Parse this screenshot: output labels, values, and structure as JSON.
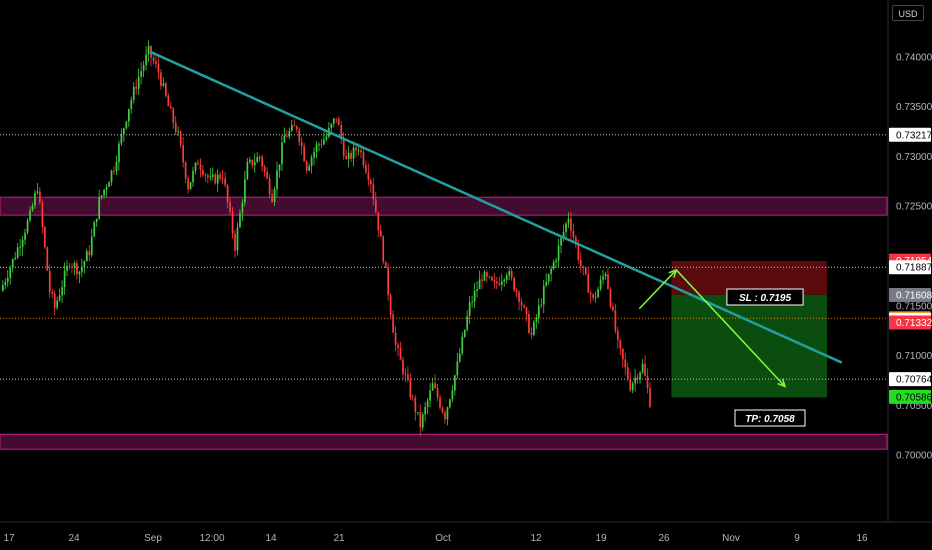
{
  "ui": {
    "currency": "USD"
  },
  "chart_data": {
    "type": "candlestick",
    "y_axis_ticks": [
      "0.74000",
      "0.73500",
      "0.73000",
      "0.72500",
      "0.71500",
      "0.71000",
      "0.70500",
      "0.70000"
    ],
    "x_axis_ticks": [
      "17",
      "24",
      "Sep",
      "12:00",
      "14",
      "21",
      "Oct",
      "12",
      "19",
      "26",
      "Nov",
      "9",
      "16"
    ],
    "ylim": [
      0.6955,
      0.7449
    ],
    "price_tags": [
      {
        "label": "0.73217",
        "value": 0.73217,
        "bg": "#ffffff",
        "fg": "#000000",
        "line": "dotted"
      },
      {
        "label": "0.71954",
        "value": 0.71954,
        "bg": "#f23645",
        "fg": "#ffffff",
        "line": "none"
      },
      {
        "label": "0.71887",
        "value": 0.71887,
        "bg": "#ffffff",
        "fg": "#000000",
        "line": "dotted"
      },
      {
        "label": "0.71608",
        "value": 0.71608,
        "bg": "#787b86",
        "fg": "#ffffff",
        "line": "none"
      },
      {
        "label": "0.71375",
        "value": 0.71375,
        "bg": "#f57c00",
        "fg": "#ffffff",
        "line": "dotted-orange"
      },
      {
        "label": "0.71360",
        "value": 0.7136,
        "bg": "#ffffff",
        "fg": "#000000",
        "line": "none"
      },
      {
        "label": "0.71332",
        "value": 0.71332,
        "bg": "#f23645",
        "fg": "#ffffff",
        "line": "none"
      },
      {
        "label": "0.70764",
        "value": 0.70764,
        "bg": "#ffffff",
        "fg": "#000000",
        "line": "dotted"
      },
      {
        "label": "0.70586",
        "value": 0.70586,
        "bg": "#22dd22",
        "fg": "#000000",
        "line": "none"
      }
    ],
    "zones": [
      {
        "name": "resistance-zone",
        "from": 0.7241,
        "to": 0.7259,
        "color": "#c0208a"
      },
      {
        "name": "support-zone",
        "from": 0.7006,
        "to": 0.7021,
        "color": "#c0208a"
      }
    ],
    "trendline": {
      "from": {
        "bar": 60,
        "price": 0.7405
      },
      "to": {
        "bar": 340,
        "price": 0.7093
      },
      "color": "#20a0a0"
    },
    "trade": {
      "sl_label": "SL : 0.7195",
      "tp_label": "TP: 0.7058",
      "entry": 0.7161,
      "stop": 0.7195,
      "target": 0.7058,
      "start_bar": 271,
      "end_bar": 334
    },
    "arrows": [
      {
        "from": {
          "bar": 258,
          "price": 0.7147
        },
        "to": {
          "bar": 273,
          "price": 0.7186
        }
      },
      {
        "from": {
          "bar": 273,
          "price": 0.7186
        },
        "to": {
          "bar": 317,
          "price": 0.7069
        }
      }
    ],
    "bars": 263,
    "close_path": [
      [
        0,
        0.7165
      ],
      [
        5,
        0.7195
      ],
      [
        12,
        0.724
      ],
      [
        15,
        0.727
      ],
      [
        20,
        0.7165
      ],
      [
        22,
        0.7148
      ],
      [
        28,
        0.7195
      ],
      [
        32,
        0.7185
      ],
      [
        36,
        0.7205
      ],
      [
        40,
        0.7255
      ],
      [
        46,
        0.729
      ],
      [
        52,
        0.735
      ],
      [
        56,
        0.738
      ],
      [
        60,
        0.7405
      ],
      [
        64,
        0.7385
      ],
      [
        68,
        0.735
      ],
      [
        72,
        0.732
      ],
      [
        76,
        0.727
      ],
      [
        80,
        0.7295
      ],
      [
        85,
        0.7275
      ],
      [
        90,
        0.7282
      ],
      [
        95,
        0.721
      ],
      [
        100,
        0.729
      ],
      [
        105,
        0.73
      ],
      [
        110,
        0.726
      ],
      [
        115,
        0.732
      ],
      [
        120,
        0.733
      ],
      [
        124,
        0.729
      ],
      [
        128,
        0.731
      ],
      [
        132,
        0.732
      ],
      [
        136,
        0.734
      ],
      [
        140,
        0.7295
      ],
      [
        145,
        0.731
      ],
      [
        150,
        0.7275
      ],
      [
        155,
        0.72
      ],
      [
        160,
        0.711
      ],
      [
        165,
        0.707
      ],
      [
        170,
        0.703
      ],
      [
        175,
        0.707
      ],
      [
        180,
        0.704
      ],
      [
        185,
        0.709
      ],
      [
        190,
        0.715
      ],
      [
        195,
        0.718
      ],
      [
        200,
        0.717
      ],
      [
        205,
        0.7185
      ],
      [
        210,
        0.716
      ],
      [
        215,
        0.712
      ],
      [
        220,
        0.7165
      ],
      [
        225,
        0.72
      ],
      [
        230,
        0.724
      ],
      [
        235,
        0.719
      ],
      [
        240,
        0.7155
      ],
      [
        245,
        0.7185
      ],
      [
        250,
        0.711
      ],
      [
        255,
        0.707
      ],
      [
        260,
        0.709
      ],
      [
        265,
        0.703
      ],
      [
        270,
        0.706
      ],
      [
        275,
        0.711
      ],
      [
        280,
        0.713
      ],
      [
        285,
        0.715
      ]
    ]
  }
}
